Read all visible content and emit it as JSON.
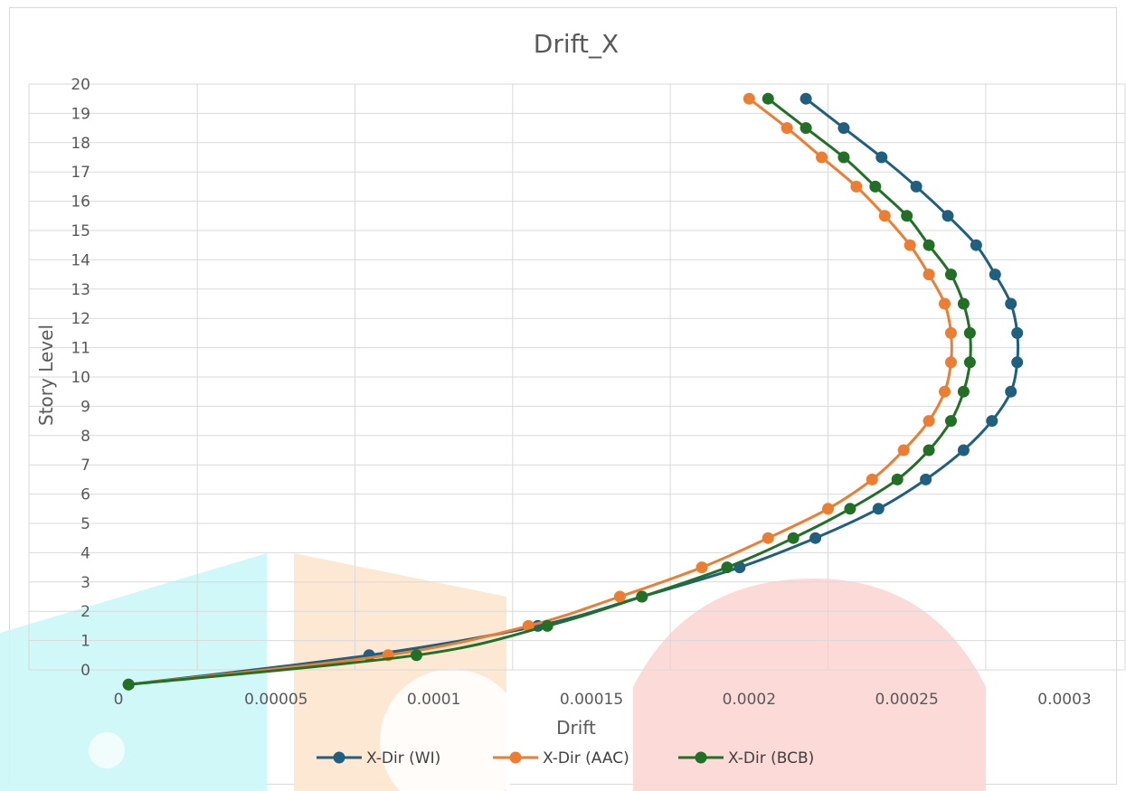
{
  "chart_data": {
    "type": "line",
    "title": "Drift_X",
    "xlabel": "Drift",
    "ylabel": "Story Level",
    "xlim": [
      0,
      0.0003
    ],
    "ylim": [
      0,
      20
    ],
    "x_ticks": [
      "0",
      "0.00005",
      "0.0001",
      "0.00015",
      "0.0002",
      "0.00025",
      "0.0003"
    ],
    "x_tick_values": [
      0,
      5e-05,
      0.0001,
      0.00015,
      0.0002,
      0.00025,
      0.0003
    ],
    "y_ticks": [
      "0",
      "1",
      "2",
      "3",
      "4",
      "5",
      "6",
      "7",
      "8",
      "9",
      "10",
      "11",
      "12",
      "13",
      "14",
      "15",
      "16",
      "17",
      "18",
      "19",
      "20"
    ],
    "grid": true,
    "legend_position": "bottom",
    "colors": {
      "wi": "#1f5f7f",
      "aac": "#ed7d31",
      "bcb": "#217025",
      "grid": "#d9d9d9"
    },
    "series": [
      {
        "name": "X-Dir (WI)",
        "color": "#1f5f7f",
        "points": [
          [
            3.2e-06,
            -0.5
          ],
          [
            7.95e-05,
            0.5
          ],
          [
            0.000133,
            1.5
          ],
          [
            0.000166,
            2.5
          ],
          [
            0.000197,
            3.5
          ],
          [
            0.000221,
            4.5
          ],
          [
            0.000241,
            5.5
          ],
          [
            0.000256,
            6.5
          ],
          [
            0.000268,
            7.5
          ],
          [
            0.000277,
            8.5
          ],
          [
            0.000283,
            9.5
          ],
          [
            0.000285,
            10.5
          ],
          [
            0.000285,
            11.5
          ],
          [
            0.000283,
            12.5
          ],
          [
            0.000278,
            13.5
          ],
          [
            0.000272,
            14.5
          ],
          [
            0.000263,
            15.5
          ],
          [
            0.000253,
            16.5
          ],
          [
            0.000242,
            17.5
          ],
          [
            0.00023,
            18.5
          ],
          [
            0.000218,
            19.5
          ]
        ]
      },
      {
        "name": "X-Dir (AAC)",
        "color": "#ed7d31",
        "points": [
          [
            3.2e-06,
            -0.5
          ],
          [
            8.55e-05,
            0.5
          ],
          [
            0.00013,
            1.5
          ],
          [
            0.000159,
            2.5
          ],
          [
            0.000185,
            3.5
          ],
          [
            0.000206,
            4.5
          ],
          [
            0.000225,
            5.5
          ],
          [
            0.000239,
            6.5
          ],
          [
            0.000249,
            7.5
          ],
          [
            0.000257,
            8.5
          ],
          [
            0.000262,
            9.5
          ],
          [
            0.000264,
            10.5
          ],
          [
            0.000264,
            11.5
          ],
          [
            0.000262,
            12.5
          ],
          [
            0.000257,
            13.5
          ],
          [
            0.000251,
            14.5
          ],
          [
            0.000243,
            15.5
          ],
          [
            0.000234,
            16.5
          ],
          [
            0.000223,
            17.5
          ],
          [
            0.000212,
            18.5
          ],
          [
            0.0002,
            19.5
          ]
        ]
      },
      {
        "name": "X-Dir (BCB)",
        "color": "#217025",
        "points": [
          [
            3.2e-06,
            -0.5
          ],
          [
            9.45e-05,
            0.5
          ],
          [
            0.000136,
            1.5
          ],
          [
            0.000166,
            2.5
          ],
          [
            0.000193,
            3.5
          ],
          [
            0.000214,
            4.5
          ],
          [
            0.000232,
            5.5
          ],
          [
            0.000247,
            6.5
          ],
          [
            0.000257,
            7.5
          ],
          [
            0.000264,
            8.5
          ],
          [
            0.000268,
            9.5
          ],
          [
            0.00027,
            10.5
          ],
          [
            0.00027,
            11.5
          ],
          [
            0.000268,
            12.5
          ],
          [
            0.000264,
            13.5
          ],
          [
            0.000257,
            14.5
          ],
          [
            0.00025,
            15.5
          ],
          [
            0.00024,
            16.5
          ],
          [
            0.00023,
            17.5
          ],
          [
            0.000218,
            18.5
          ],
          [
            0.000206,
            19.5
          ]
        ]
      }
    ]
  }
}
